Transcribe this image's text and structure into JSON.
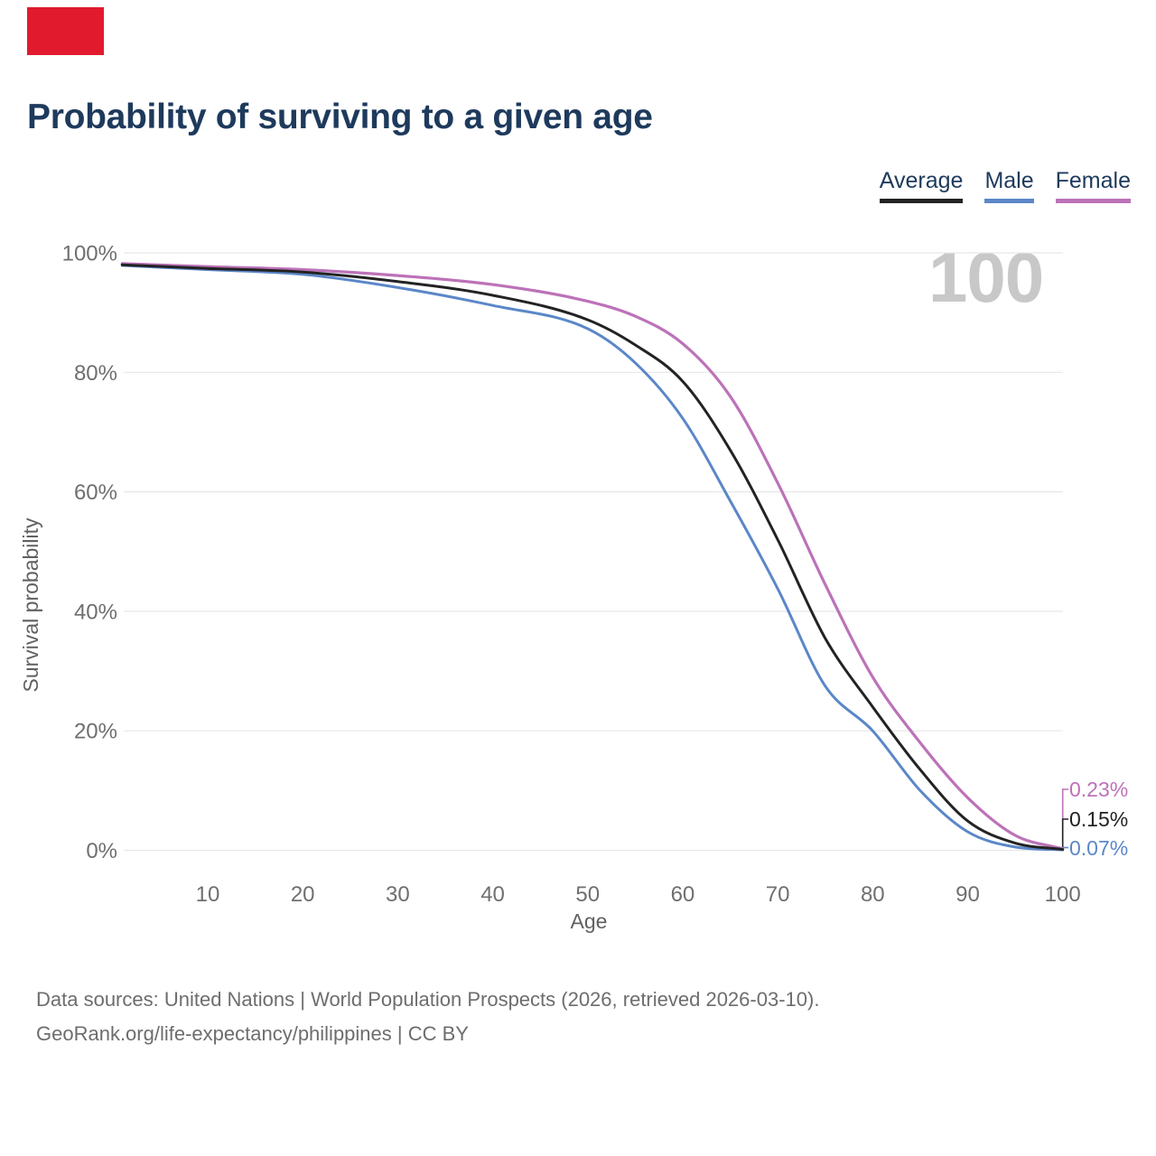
{
  "brand_flag": {
    "color": "#e11b2d"
  },
  "header": {
    "title": "Probability of surviving to a given age"
  },
  "legend": {
    "items": [
      {
        "label": "Average",
        "color": "#232323"
      },
      {
        "label": "Male",
        "color": "#5b87c8"
      },
      {
        "label": "Female",
        "color": "#bc72b8"
      }
    ]
  },
  "watermark": {
    "text": "100"
  },
  "end_labels": [
    {
      "text": "0.23%",
      "series": "Female",
      "color": "#bc72b8"
    },
    {
      "text": "0.15%",
      "series": "Average",
      "color": "#222222"
    },
    {
      "text": "0.07%",
      "series": "Male",
      "color": "#5b87c8"
    }
  ],
  "footer": {
    "line1": "Data sources: United Nations | World Population Prospects (2026, retrieved 2026-03-10).",
    "line2": "GeoRank.org/life-expectancy/philippines | CC BY"
  },
  "chart_data": {
    "type": "line",
    "title": "Probability of surviving to a given age",
    "xlabel": "Age",
    "ylabel": "Survival probability",
    "xlim": [
      1,
      100
    ],
    "ylim": [
      0,
      100
    ],
    "grid": "horizontal",
    "legend_position": "top-right",
    "x_ticks": [
      10,
      20,
      30,
      40,
      50,
      60,
      70,
      80,
      90,
      100
    ],
    "y_ticks": [
      {
        "value": 100,
        "label": "100%"
      },
      {
        "value": 80,
        "label": "80%"
      },
      {
        "value": 60,
        "label": "60%"
      },
      {
        "value": 40,
        "label": "40%"
      },
      {
        "value": 20,
        "label": "20%"
      },
      {
        "value": 0,
        "label": "0%"
      }
    ],
    "x": [
      1,
      10,
      20,
      30,
      40,
      50,
      55,
      60,
      65,
      70,
      75,
      80,
      85,
      90,
      95,
      100
    ],
    "series": [
      {
        "name": "Male",
        "color": "#5b87c8",
        "width": 3,
        "values": [
          97.9,
          97.2,
          96.4,
          94.2,
          91.2,
          87.3,
          81.6,
          72.3,
          58.5,
          43.8,
          27.5,
          20.0,
          10.0,
          3.1,
          0.55,
          0.07
        ]
      },
      {
        "name": "Female",
        "color": "#bc72b8",
        "width": 3.2,
        "values": [
          98.2,
          97.7,
          97.2,
          96.2,
          94.7,
          91.9,
          89.4,
          84.8,
          76.0,
          61.5,
          44.5,
          29.0,
          18.0,
          8.8,
          2.5,
          0.23
        ]
      },
      {
        "name": "Average",
        "color": "#232323",
        "width": 3,
        "values": [
          98.0,
          97.4,
          96.8,
          95.2,
          92.9,
          88.8,
          84.6,
          78.5,
          67.0,
          52.0,
          35.5,
          24.0,
          13.5,
          4.9,
          1.2,
          0.15
        ]
      }
    ],
    "end_values": {
      "Female": "0.23%",
      "Average": "0.15%",
      "Male": "0.07%"
    }
  }
}
